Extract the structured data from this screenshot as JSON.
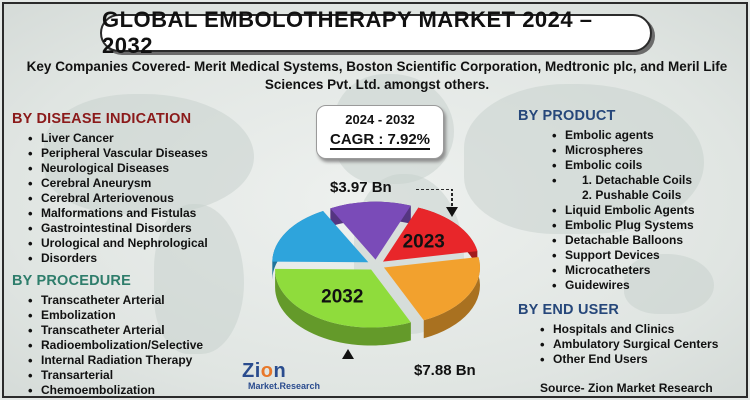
{
  "title": "GLOBAL EMBOLOTHERAPY MARKET 2024 – 2032",
  "subtitle_line1": "Key Companies Covered- Merit Medical Systems, Boston Scientific Corporation, Medtronic plc, and Meril Life",
  "subtitle_line2": "Sciences Pvt. Ltd. amongst others.",
  "disease": {
    "heading": "BY DISEASE INDICATION",
    "items": [
      "Liver Cancer",
      "Peripheral Vascular Diseases",
      "Neurological Diseases",
      "Cerebral Aneurysm",
      "Cerebral Arteriovenous",
      "Malformations and Fistulas",
      "Gastrointestinal Disorders",
      "Urological and Nephrological",
      "Disorders"
    ]
  },
  "procedure": {
    "heading": "BY PROCEDURE",
    "items": [
      "Transcatheter Arterial",
      "Embolization",
      "Transcatheter Arterial",
      "Radioembolization/Selective",
      "Internal Radiation Therapy",
      "Transarterial",
      "Chemoembolization"
    ]
  },
  "product": {
    "heading": "BY PRODUCT",
    "items": [
      "Embolic agents",
      "Microspheres",
      "Embolic coils",
      "1. Detachable Coils",
      "2. Pushable Coils",
      "Liquid Embolic Agents",
      "Embolic Plug Systems",
      "Detachable Balloons",
      "Support Devices",
      "Microcatheters",
      "Guidewires"
    ]
  },
  "end_user": {
    "heading": "BY END USER",
    "items": [
      "Hospitals and Clinics",
      "Ambulatory Surgical Centers",
      "Other End Users"
    ]
  },
  "cagr": {
    "period": "2024 - 2032",
    "value": "CAGR : 7.92%"
  },
  "logo": {
    "main_a": "Zi",
    "main_o": "o",
    "main_b": "n",
    "sub": "Market.Research"
  },
  "source": "Source- Zion Market Research",
  "colors": {
    "red": "#e8262a",
    "orange": "#f2a12e",
    "green": "#8fdc3c",
    "blue": "#2ea4dc",
    "purple": "#7a4bb8"
  },
  "chart_data": {
    "type": "pie",
    "style": "3d-exploded",
    "title": "",
    "slices": [
      {
        "label": "2023",
        "value": 3.97,
        "color": "#e8262a"
      },
      {
        "label": "",
        "value": 5.2,
        "color": "#f2a12e"
      },
      {
        "label": "2032",
        "value": 7.88,
        "color": "#8fdc3c"
      },
      {
        "label": "",
        "value": 4.2,
        "color": "#2ea4dc"
      },
      {
        "label": "",
        "value": 3.4,
        "color": "#7a4bb8"
      }
    ],
    "annotations": [
      "$3.97 Bn",
      "$7.88 Bn"
    ]
  }
}
